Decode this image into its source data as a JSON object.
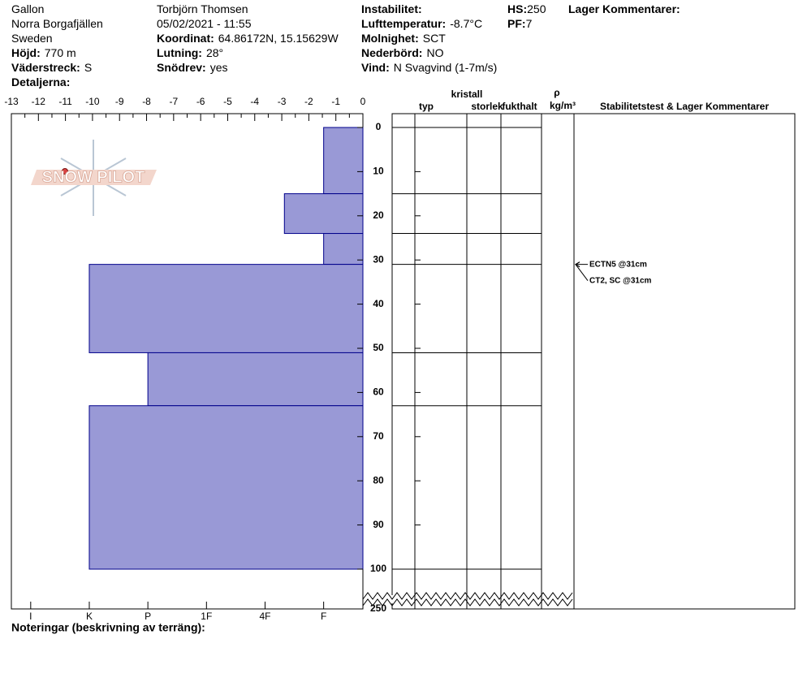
{
  "header": {
    "columns": [
      [
        "Gallon",
        "Norra Borgafjällen",
        "Sweden",
        {
          "label": "Höjd:",
          "value": "770 m"
        },
        {
          "label": "Väderstreck:",
          "value": "S"
        },
        {
          "label": "Detaljerna:"
        }
      ],
      [
        "Torbjörn Thomsen",
        "05/02/2021 - 11:55",
        {
          "label": "Koordinat:",
          "value": "64.86172N, 15.15629W"
        },
        {
          "label": "Lutning:",
          "value": "28°"
        },
        {
          "label": "Snödrev:",
          "value": "yes"
        }
      ],
      [
        {
          "label": "Instabilitet:"
        },
        {
          "label": "Lufttemperatur:",
          "value": "-8.7°C"
        },
        {
          "label": "Molnighet:",
          "value": "SCT"
        },
        {
          "label": "Nederbörd:",
          "value": "NO"
        },
        {
          "label": "Vind:",
          "value": "N Svagvind (1-7m/s)"
        }
      ],
      [
        {
          "label": "HS:",
          "value": 250
        },
        {
          "label": "PF:",
          "value": 7
        }
      ],
      [
        {
          "label": "Lager Kommentarer:"
        }
      ]
    ]
  },
  "logo": "SNOW PILOT",
  "footer": "Noteringar (beskrivning av terräng):",
  "chart_data": {
    "type": "snow-profile",
    "xlim": [
      -13,
      0
    ],
    "xticks": [
      -13,
      -12,
      -11,
      -10,
      -9,
      -8,
      -7,
      -6,
      -5,
      -4,
      -3,
      -2,
      -1,
      0
    ],
    "hardness_lim": [
      6.33,
      0.33
    ],
    "hardness_ticks": [
      {
        "value": 6,
        "label": "I"
      },
      {
        "value": 5,
        "label": "K"
      },
      {
        "value": 4,
        "label": "P"
      },
      {
        "value": 3,
        "label": "1F"
      },
      {
        "value": 2,
        "label": "4F"
      },
      {
        "value": 1,
        "label": "F"
      }
    ],
    "ylim": [
      0,
      250
    ],
    "yticks": [
      0,
      10,
      20,
      30,
      40,
      50,
      60,
      70,
      80,
      90,
      100,
      250
    ],
    "color": "#9999d6",
    "edge_color": "#00008b",
    "layers": [
      {
        "top": 0,
        "bottom": 15,
        "hardness": 1
      },
      {
        "top": 15,
        "bottom": 24,
        "hardness": 1.67
      },
      {
        "top": 24,
        "bottom": 31,
        "hardness": 1
      },
      {
        "top": 31,
        "bottom": 51,
        "hardness": 5
      },
      {
        "top": 51,
        "bottom": 63,
        "hardness": 4
      },
      {
        "top": 63,
        "bottom": 100,
        "hardness": 5
      }
    ],
    "table_headers": [
      "typ",
      "kristall",
      "storlek",
      "fukthalt",
      "ρ",
      "kg/m³",
      "Stabilitetstest & Lager Kommentarer"
    ],
    "stability_tests": [
      {
        "label": "ECTN5 @31cm",
        "depth": 31
      },
      {
        "label": "CT2, SC @31cm",
        "depth": 31
      }
    ]
  }
}
